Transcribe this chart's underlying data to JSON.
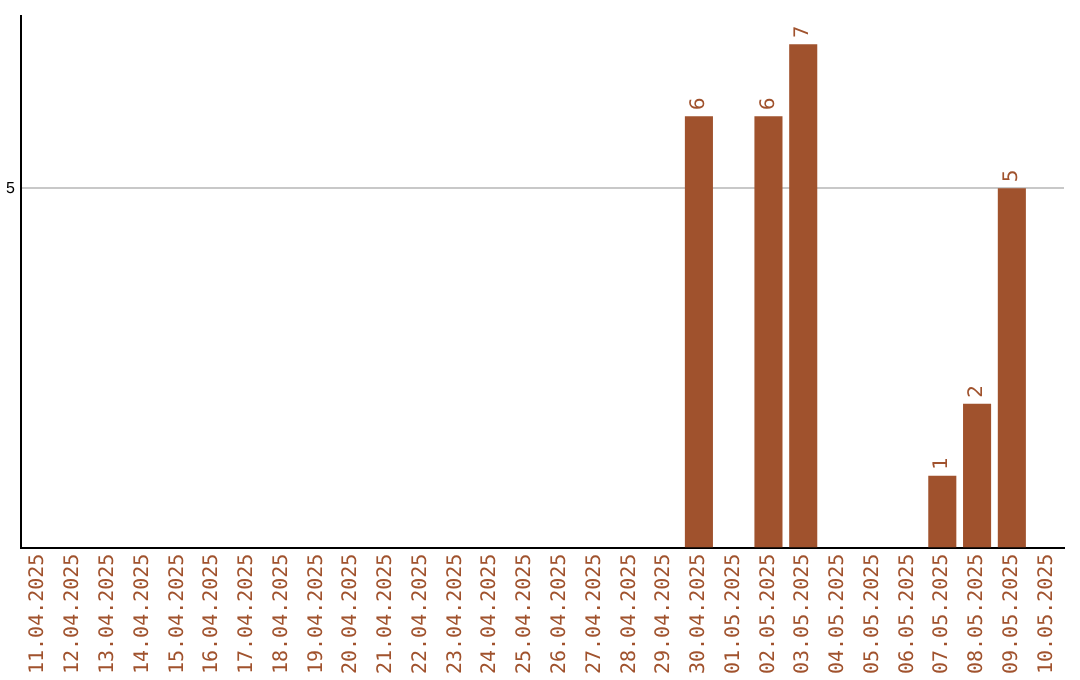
{
  "chart_data": {
    "type": "bar",
    "categories": [
      "11.04.2025",
      "12.04.2025",
      "13.04.2025",
      "14.04.2025",
      "15.04.2025",
      "16.04.2025",
      "17.04.2025",
      "18.04.2025",
      "19.04.2025",
      "20.04.2025",
      "21.04.2025",
      "22.04.2025",
      "23.04.2025",
      "24.04.2025",
      "25.04.2025",
      "26.04.2025",
      "27.04.2025",
      "28.04.2025",
      "29.04.2025",
      "30.04.2025",
      "01.05.2025",
      "02.05.2025",
      "03.05.2025",
      "04.05.2025",
      "05.05.2025",
      "06.05.2025",
      "07.05.2025",
      "08.05.2025",
      "09.05.2025",
      "10.05.2025"
    ],
    "values": [
      null,
      null,
      null,
      null,
      null,
      null,
      null,
      null,
      null,
      null,
      null,
      null,
      null,
      null,
      null,
      null,
      null,
      null,
      null,
      6,
      null,
      6,
      7,
      null,
      null,
      null,
      1,
      2,
      5,
      null
    ],
    "data_labels": true,
    "color": "#a0522d",
    "ylim": [
      0,
      7.4
    ],
    "yticks": [
      5
    ],
    "grid": "y",
    "legend": false
  }
}
